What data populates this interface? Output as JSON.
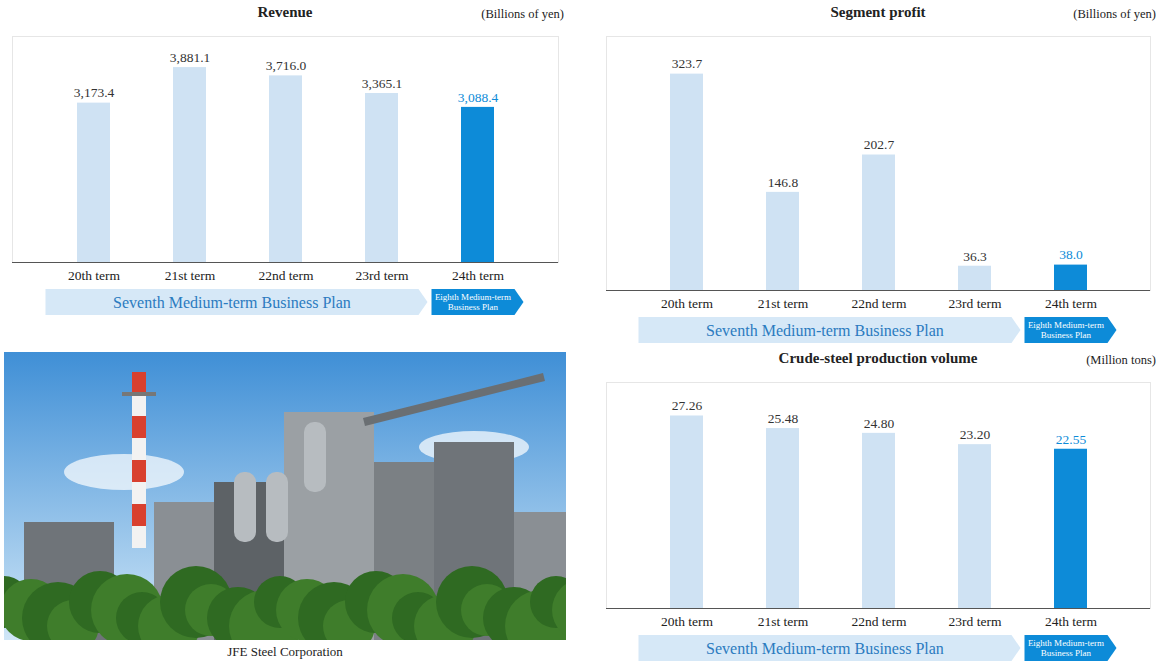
{
  "chart_data": [
    {
      "type": "bar",
      "title": "Revenue",
      "subtitle": "(Billions of yen)",
      "categories": [
        "20th term",
        "21st term",
        "22nd term",
        "23rd term",
        "24th term"
      ],
      "values": [
        3173.4,
        3881.1,
        3716.0,
        3365.1,
        3088.4
      ],
      "value_labels": [
        "3,173.4",
        "3,881.1",
        "3,716.0",
        "3,365.1",
        "3,088.4"
      ],
      "colors": [
        "#cfe2f3",
        "#cfe2f3",
        "#cfe2f3",
        "#cfe2f3",
        "#0d8bd8"
      ],
      "ylim": [
        0,
        4500
      ],
      "yticks": [],
      "tick_labels": "x",
      "grid": false,
      "data_labels": true,
      "annotations": [
        {
          "text": "Seventh Medium-term Business Plan",
          "span": [
            "20th term",
            "23rd term"
          ]
        },
        {
          "text": "Eighth Medium-term Business Plan",
          "span": [
            "24th term",
            "24th term"
          ]
        }
      ]
    },
    {
      "type": "bar",
      "title": "Segment profit",
      "subtitle": "(Billions of yen)",
      "categories": [
        "20th term",
        "21st term",
        "22nd term",
        "23rd term",
        "24th term"
      ],
      "values": [
        323.7,
        146.8,
        202.7,
        36.3,
        38.0
      ],
      "value_labels": [
        "323.7",
        "146.8",
        "202.7",
        "36.3",
        "38.0"
      ],
      "colors": [
        "#cfe2f3",
        "#cfe2f3",
        "#cfe2f3",
        "#cfe2f3",
        "#0d8bd8"
      ],
      "ylim": [
        0,
        380
      ],
      "yticks": [],
      "tick_labels": "x",
      "grid": false,
      "data_labels": true,
      "annotations": [
        {
          "text": "Seventh Medium-term Business Plan",
          "span": [
            "20th term",
            "23rd term"
          ]
        },
        {
          "text": "Eighth Medium-term Business Plan",
          "span": [
            "24th term",
            "24th term"
          ]
        }
      ]
    },
    {
      "type": "bar",
      "title": "Crude-steel production volume",
      "subtitle": "(Million tons)",
      "categories": [
        "20th term",
        "21st term",
        "22nd term",
        "23rd term",
        "24th term"
      ],
      "values": [
        27.26,
        25.48,
        24.8,
        23.2,
        22.55
      ],
      "value_labels": [
        "27.26",
        "25.48",
        "24.80",
        "23.20",
        "22.55"
      ],
      "colors": [
        "#cfe2f3",
        "#cfe2f3",
        "#cfe2f3",
        "#cfe2f3",
        "#0d8bd8"
      ],
      "ylim": [
        0,
        32
      ],
      "yticks": [],
      "tick_labels": "x",
      "grid": false,
      "data_labels": true,
      "annotations": [
        {
          "text": "Seventh Medium-term Business Plan",
          "span": [
            "20th term",
            "23rd term"
          ]
        },
        {
          "text": "Eighth Medium-term Business Plan",
          "span": [
            "24th term",
            "24th term"
          ]
        }
      ]
    }
  ],
  "photo": {
    "caption": "JFE Steel Corporation"
  }
}
